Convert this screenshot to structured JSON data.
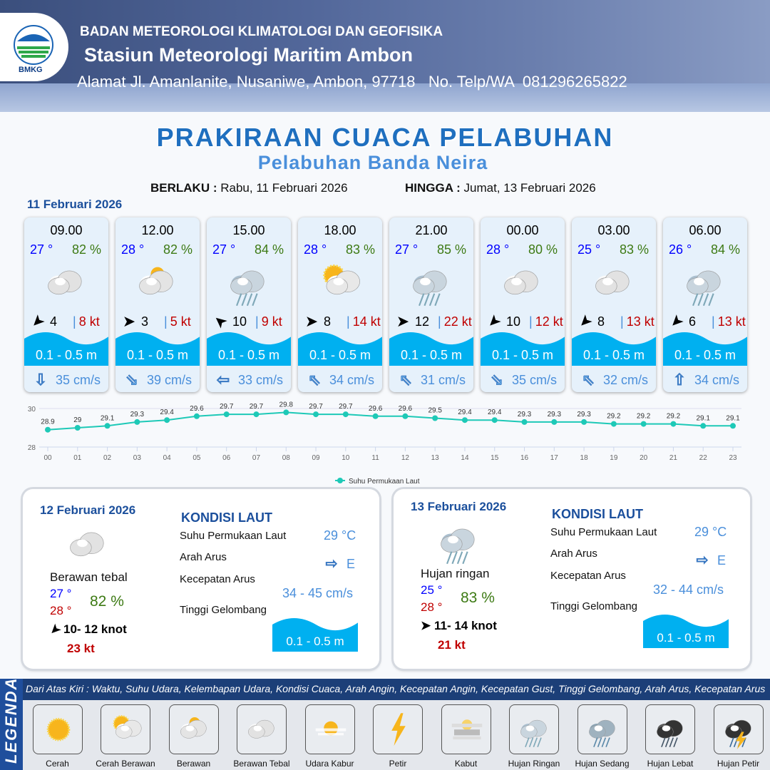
{
  "header": {
    "org": "BADAN METEOROLOGI KLIMATOLOGI DAN GEOFISIKA",
    "station": "Stasiun Meteorologi Maritim Ambon",
    "address": "Alamat Jl. Amanlanite, Nusaniwe, Ambon, 97718   No. Telp/WA  081296265822",
    "logo_text": "BMKG"
  },
  "title": "PRAKIRAAN CUACA PELABUHAN",
  "subtitle": "Pelabuhan Banda Neira",
  "validity": {
    "from_label": "BERLAKU :",
    "from": "Rabu, 11 Februari 2026",
    "to_label": "HINGGA :",
    "to": "Jumat, 13 Februari 2026"
  },
  "day1": {
    "date": "11 Februari 2026",
    "cards": [
      {
        "time": "09.00",
        "temp": "27 °",
        "hum": "82 %",
        "icon": "berawan-tebal",
        "wind_dir_icon": "arrow-sw",
        "wind": "4",
        "gust": "8 kt",
        "wave": "0.1 - 0.5 m",
        "current_dir_icon": "arrow-down",
        "current": "35 cm/s"
      },
      {
        "time": "12.00",
        "temp": "28 °",
        "hum": "82 %",
        "icon": "berawan",
        "wind_dir_icon": "arrow-e",
        "wind": "3",
        "gust": "5 kt",
        "wave": "0.1 - 0.5 m",
        "current_dir_icon": "arrow-down-right",
        "current": "39 cm/s"
      },
      {
        "time": "15.00",
        "temp": "27 °",
        "hum": "84 %",
        "icon": "hujan-ringan",
        "wind_dir_icon": "arrow-nw",
        "wind": "10",
        "gust": "9 kt",
        "wave": "0.1 - 0.5 m",
        "current_dir_icon": "arrow-left",
        "current": "33 cm/s"
      },
      {
        "time": "18.00",
        "temp": "28 °",
        "hum": "83 %",
        "icon": "cerah-berawan",
        "wind_dir_icon": "arrow-e",
        "wind": "8",
        "gust": "14 kt",
        "wave": "0.1 - 0.5 m",
        "current_dir_icon": "arrow-up-left",
        "current": "34 cm/s"
      },
      {
        "time": "21.00",
        "temp": "27 °",
        "hum": "85 %",
        "icon": "hujan-ringan",
        "wind_dir_icon": "arrow-e",
        "wind": "12",
        "gust": "22 kt",
        "wave": "0.1 - 0.5 m",
        "current_dir_icon": "arrow-up-left",
        "current": "31 cm/s"
      },
      {
        "time": "00.00",
        "temp": "28 °",
        "hum": "80 %",
        "icon": "berawan-tebal",
        "wind_dir_icon": "arrow-sw",
        "wind": "10",
        "gust": "12 kt",
        "wave": "0.1 - 0.5 m",
        "current_dir_icon": "arrow-down-right",
        "current": "35 cm/s"
      },
      {
        "time": "03.00",
        "temp": "25 °",
        "hum": "83 %",
        "icon": "berawan-tebal",
        "wind_dir_icon": "arrow-sw",
        "wind": "8",
        "gust": "13 kt",
        "wave": "0.1 - 0.5 m",
        "current_dir_icon": "arrow-up-left",
        "current": "32 cm/s"
      },
      {
        "time": "06.00",
        "temp": "26 °",
        "hum": "84 %",
        "icon": "hujan-ringan",
        "wind_dir_icon": "arrow-sw",
        "wind": "6",
        "gust": "13 kt",
        "wave": "0.1 - 0.5 m",
        "current_dir_icon": "arrow-up",
        "current": "34 cm/s"
      }
    ]
  },
  "chart_data": {
    "type": "line",
    "x": [
      "00",
      "01",
      "02",
      "03",
      "04",
      "05",
      "06",
      "07",
      "08",
      "09",
      "10",
      "11",
      "12",
      "13",
      "14",
      "15",
      "16",
      "17",
      "18",
      "19",
      "20",
      "21",
      "22",
      "23"
    ],
    "series": [
      {
        "name": "Suhu Permukaan Laut",
        "values": [
          28.9,
          29.0,
          29.1,
          29.3,
          29.4,
          29.6,
          29.7,
          29.7,
          29.8,
          29.7,
          29.7,
          29.6,
          29.6,
          29.5,
          29.4,
          29.4,
          29.3,
          29.3,
          29.3,
          29.2,
          29.2,
          29.2,
          29.1,
          29.1
        ]
      }
    ],
    "yticks": [
      "30",
      "28"
    ],
    "ylim": [
      28,
      30
    ],
    "legend": "bottom",
    "color": "#1ec9b7"
  },
  "panels": [
    {
      "date": "12 Februari 2026",
      "icon": "berawan-tebal",
      "condition": "Berawan tebal",
      "temp_min": "27 °",
      "temp_max": "28 °",
      "hum": "82 %",
      "wind": "10- 12 knot",
      "gust": "23 kt",
      "kondisi_title": "KONDISI LAUT",
      "sst_label": "Suhu Permukaan Laut",
      "sst": "29 °C",
      "arus_label": "Arah Arus",
      "arus": "E",
      "kec_label": "Kecepatan Arus",
      "kec": "34 - 45 cm/s",
      "gel_label": "Tinggi Gelombang",
      "gel": "0.1 - 0.5 m"
    },
    {
      "date": "13 Februari 2026",
      "icon": "hujan-ringan",
      "condition": "Hujan ringan",
      "temp_min": "25 °",
      "temp_max": "28 °",
      "hum": "83 %",
      "wind": "11- 14 knot",
      "gust": "21 kt",
      "kondisi_title": "KONDISI LAUT",
      "sst_label": "Suhu Permukaan Laut",
      "sst": "29 °C",
      "arus_label": "Arah Arus",
      "arus": "E",
      "kec_label": "Kecepatan Arus",
      "kec": "32 - 44 cm/s",
      "gel_label": "Tinggi Gelombang",
      "gel": "0.1 - 0.5 m"
    }
  ],
  "legend": {
    "title": "LEGENDA",
    "description": "Dari Atas Kiri : Waktu, Suhu Udara, Kelembapan Udara, Kondisi Cuaca, Arah Angin, Kecepatan Angin, Kecepatan Gust, Tinggi Gelombang, Arah Arus, Kecepatan Arus",
    "items": [
      {
        "label": "Cerah",
        "icon": "cerah"
      },
      {
        "label": "Cerah Berawan",
        "icon": "cerah-berawan"
      },
      {
        "label": "Berawan",
        "icon": "berawan"
      },
      {
        "label": "Berawan Tebal",
        "icon": "berawan-tebal"
      },
      {
        "label": "Udara Kabur",
        "icon": "udara-kabur"
      },
      {
        "label": "Petir",
        "icon": "petir"
      },
      {
        "label": "Kabut",
        "icon": "kabut"
      },
      {
        "label": "Hujan Ringan",
        "icon": "hujan-ringan"
      },
      {
        "label": "Hujan Sedang",
        "icon": "hujan-sedang"
      },
      {
        "label": "Hujan Lebat",
        "icon": "hujan-lebat"
      },
      {
        "label": "Hujan Petir",
        "icon": "hujan-petir"
      }
    ]
  }
}
